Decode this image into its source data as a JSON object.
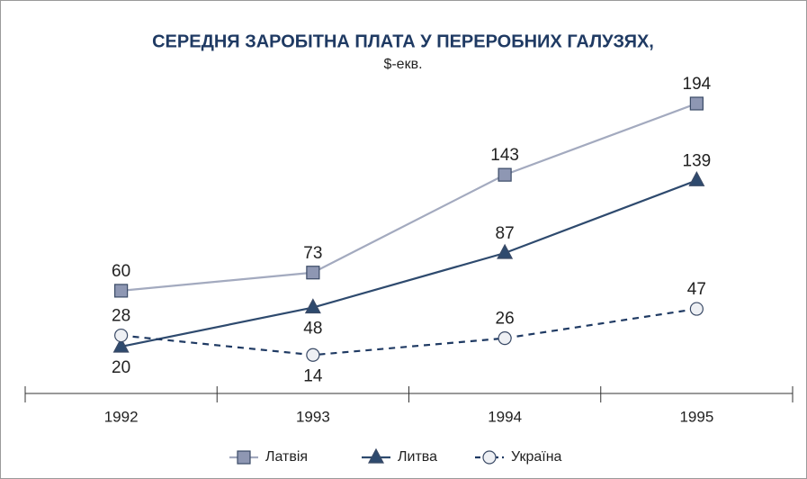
{
  "chart_data": {
    "type": "line",
    "title": "СЕРЕДНЯ ЗАРОБІТНА ПЛАТА У ПЕРЕРОБНИХ ГАЛУЗЯХ,",
    "subtitle": "$-екв.",
    "categories": [
      "1992",
      "1993",
      "1994",
      "1995"
    ],
    "series": [
      {
        "name": "Латвія",
        "color": "#a3aabf",
        "marker": "square",
        "values": [
          60,
          73,
          143,
          194
        ]
      },
      {
        "name": "Литва",
        "color": "#2e4a6e",
        "marker": "triangle",
        "values": [
          20,
          48,
          87,
          139
        ]
      },
      {
        "name": "Україна",
        "color": "#1f3a63",
        "marker": "circle",
        "dashed": true,
        "values": [
          28,
          14,
          26,
          47
        ]
      }
    ]
  }
}
